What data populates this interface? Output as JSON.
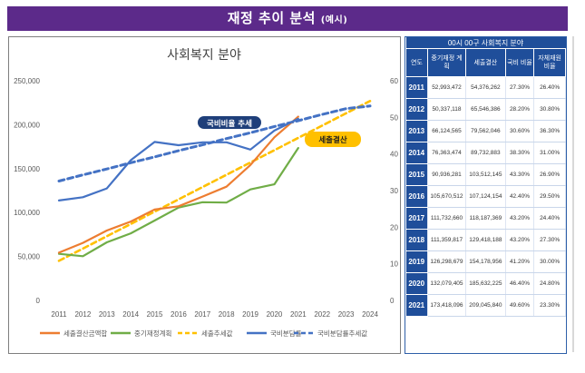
{
  "header": {
    "title": "재정 추이 분석",
    "subtitle": "(예시)"
  },
  "colors": {
    "banner": "#5c2a8a",
    "settlement": "#ed7d31",
    "plan": "#70ad47",
    "settlement_trend": "#ffc000",
    "ratio": "#4472c4",
    "ratio_trend": "#4472c4",
    "table_header": "#1f4e9a"
  },
  "chart_data": {
    "type": "line",
    "title": "사회복지 분야",
    "categories": [
      "2011",
      "2012",
      "2013",
      "2014",
      "2015",
      "2016",
      "2017",
      "2018",
      "2019",
      "2020",
      "2021",
      "2022",
      "2023",
      "2024"
    ],
    "ylim_left": [
      0,
      250000
    ],
    "ylim_right": [
      0,
      60
    ],
    "left_ticks": [
      "0",
      "50,000",
      "100,000",
      "150,000",
      "200,000",
      "250,000"
    ],
    "right_ticks": [
      "0",
      "10",
      "20",
      "30",
      "40",
      "50",
      "60"
    ],
    "series": [
      {
        "name": "세출결산금액합",
        "axis": "left",
        "style": "solid",
        "values": [
          54376,
          65546,
          79562,
          89733,
          103512,
          107124,
          118187,
          129418,
          154179,
          185632,
          209046,
          null,
          null,
          null
        ]
      },
      {
        "name": "중기재정계획",
        "axis": "left",
        "style": "solid",
        "values": [
          52993,
          50337,
          66124,
          76363,
          90936,
          105671,
          111733,
          111360,
          126299,
          132079,
          173418,
          null,
          null,
          null
        ]
      },
      {
        "name": "세출추세값",
        "axis": "left",
        "style": "dashed",
        "values": [
          45000,
          59000,
          73000,
          87000,
          101000,
          115000,
          129000,
          143000,
          157000,
          171000,
          185000,
          199000,
          213000,
          227000
        ]
      },
      {
        "name": "국비분담률",
        "axis": "right",
        "style": "solid",
        "values": [
          27.3,
          28.2,
          30.6,
          38.3,
          43.3,
          42.4,
          43.2,
          43.2,
          41.2,
          46.4,
          49.6,
          null,
          null,
          null
        ]
      },
      {
        "name": "국비분담률추세값",
        "axis": "right",
        "style": "dashed",
        "values": [
          32.6,
          34.3,
          35.9,
          37.6,
          39.2,
          40.9,
          42.5,
          44.2,
          45.8,
          47.5,
          49.1,
          50.8,
          52.4,
          53.1
        ]
      }
    ],
    "annotations": [
      {
        "text": "국비비율 추세"
      },
      {
        "text": "세출결산"
      }
    ],
    "legend": "bottom"
  },
  "table": {
    "caption": "00시 00구 사회복지 분야",
    "headers": [
      "연도",
      "중기재정 계획",
      "세출결산",
      "국비 비율",
      "자체재원 비율"
    ],
    "rows": [
      [
        "2011",
        "52,993,472",
        "54,376,262",
        "27.30%",
        "26.40%"
      ],
      [
        "2012",
        "50,337,118",
        "65,546,386",
        "28.20%",
        "30.80%"
      ],
      [
        "2013",
        "66,124,565",
        "79,562,046",
        "30.60%",
        "36.30%"
      ],
      [
        "2014",
        "76,363,474",
        "89,732,883",
        "38.30%",
        "31.00%"
      ],
      [
        "2015",
        "90,936,281",
        "103,512,145",
        "43.30%",
        "26.90%"
      ],
      [
        "2016",
        "105,670,512",
        "107,124,154",
        "42.40%",
        "29.50%"
      ],
      [
        "2017",
        "111,732,660",
        "118,187,369",
        "43.20%",
        "24.40%"
      ],
      [
        "2018",
        "111,359,817",
        "129,418,188",
        "43.20%",
        "27.30%"
      ],
      [
        "2019",
        "126,298,679",
        "154,178,956",
        "41.20%",
        "30.00%"
      ],
      [
        "2020",
        "132,079,405",
        "185,632,225",
        "46.40%",
        "24.80%"
      ],
      [
        "2021",
        "173,418,096",
        "209,045,840",
        "49.60%",
        "23.30%"
      ]
    ]
  }
}
